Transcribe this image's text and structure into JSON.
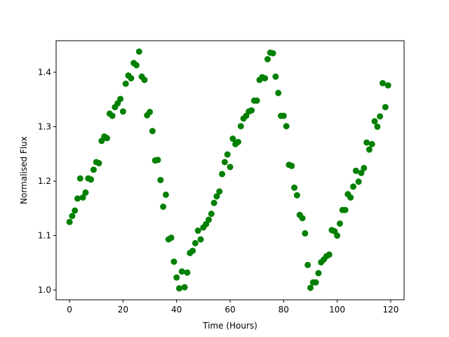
{
  "chart_data": {
    "type": "scatter",
    "title": "",
    "xlabel": "Time (Hours)",
    "ylabel": "Normalised Flux",
    "xlim": [
      -5,
      125
    ],
    "ylim": [
      0.982,
      1.458
    ],
    "xticks": [
      0,
      20,
      40,
      60,
      80,
      100,
      120
    ],
    "xtick_labels": [
      "0",
      "20",
      "40",
      "60",
      "80",
      "100",
      "120"
    ],
    "yticks": [
      1.0,
      1.1,
      1.2,
      1.3,
      1.4
    ],
    "ytick_labels": [
      "1.0",
      "1.1",
      "1.2",
      "1.3",
      "1.4"
    ],
    "grid": false,
    "marker_color": "#008000",
    "series": [
      {
        "x": [
          0,
          1,
          2,
          3,
          4,
          5,
          6,
          7,
          8,
          9,
          10,
          11,
          12,
          13,
          14,
          15,
          16,
          17,
          18,
          19,
          20,
          21,
          22,
          23,
          24,
          25,
          26,
          27,
          28,
          29,
          30,
          31,
          32,
          33,
          34,
          35,
          36,
          37,
          38,
          39,
          40,
          41,
          42,
          43,
          44,
          45,
          46,
          47,
          48,
          49,
          50,
          51,
          52,
          53,
          54,
          55,
          56,
          57,
          58,
          59,
          60,
          61,
          62,
          63,
          64,
          65,
          66,
          67,
          68,
          69,
          70,
          71,
          72,
          73,
          74,
          75,
          76,
          77,
          78,
          79,
          80,
          81,
          82,
          83,
          84,
          85,
          86,
          87,
          88,
          89,
          90,
          91,
          92,
          93,
          94,
          95,
          96,
          97,
          98,
          99,
          100,
          101,
          102,
          103,
          104,
          105,
          106,
          107,
          108,
          109,
          110,
          111,
          112,
          113,
          114,
          115,
          116,
          117,
          118,
          119
        ],
        "y": [
          1.125,
          1.136,
          1.146,
          1.168,
          1.205,
          1.17,
          1.179,
          1.205,
          1.203,
          1.221,
          1.235,
          1.233,
          1.274,
          1.282,
          1.279,
          1.324,
          1.32,
          1.336,
          1.343,
          1.351,
          1.328,
          1.379,
          1.394,
          1.389,
          1.417,
          1.413,
          1.438,
          1.392,
          1.386,
          1.321,
          1.327,
          1.292,
          1.238,
          1.239,
          1.202,
          1.153,
          1.175,
          1.093,
          1.096,
          1.052,
          1.023,
          1.003,
          1.034,
          1.005,
          1.032,
          1.068,
          1.072,
          1.086,
          1.109,
          1.093,
          1.115,
          1.121,
          1.129,
          1.14,
          1.16,
          1.172,
          1.181,
          1.213,
          1.235,
          1.249,
          1.226,
          1.278,
          1.268,
          1.272,
          1.301,
          1.315,
          1.32,
          1.328,
          1.33,
          1.348,
          1.348,
          1.386,
          1.391,
          1.389,
          1.424,
          1.436,
          1.435,
          1.392,
          1.362,
          1.32,
          1.32,
          1.301,
          1.23,
          1.228,
          1.188,
          1.174,
          1.138,
          1.132,
          1.104,
          1.046,
          1.004,
          1.014,
          1.014,
          1.031,
          1.051,
          1.056,
          1.062,
          1.065,
          1.11,
          1.108,
          1.1,
          1.122,
          1.147,
          1.147,
          1.176,
          1.17,
          1.19,
          1.219,
          1.199,
          1.215,
          1.224,
          1.271,
          1.258,
          1.268,
          1.31,
          1.3,
          1.319,
          1.38,
          1.336,
          1.376
        ]
      }
    ]
  }
}
